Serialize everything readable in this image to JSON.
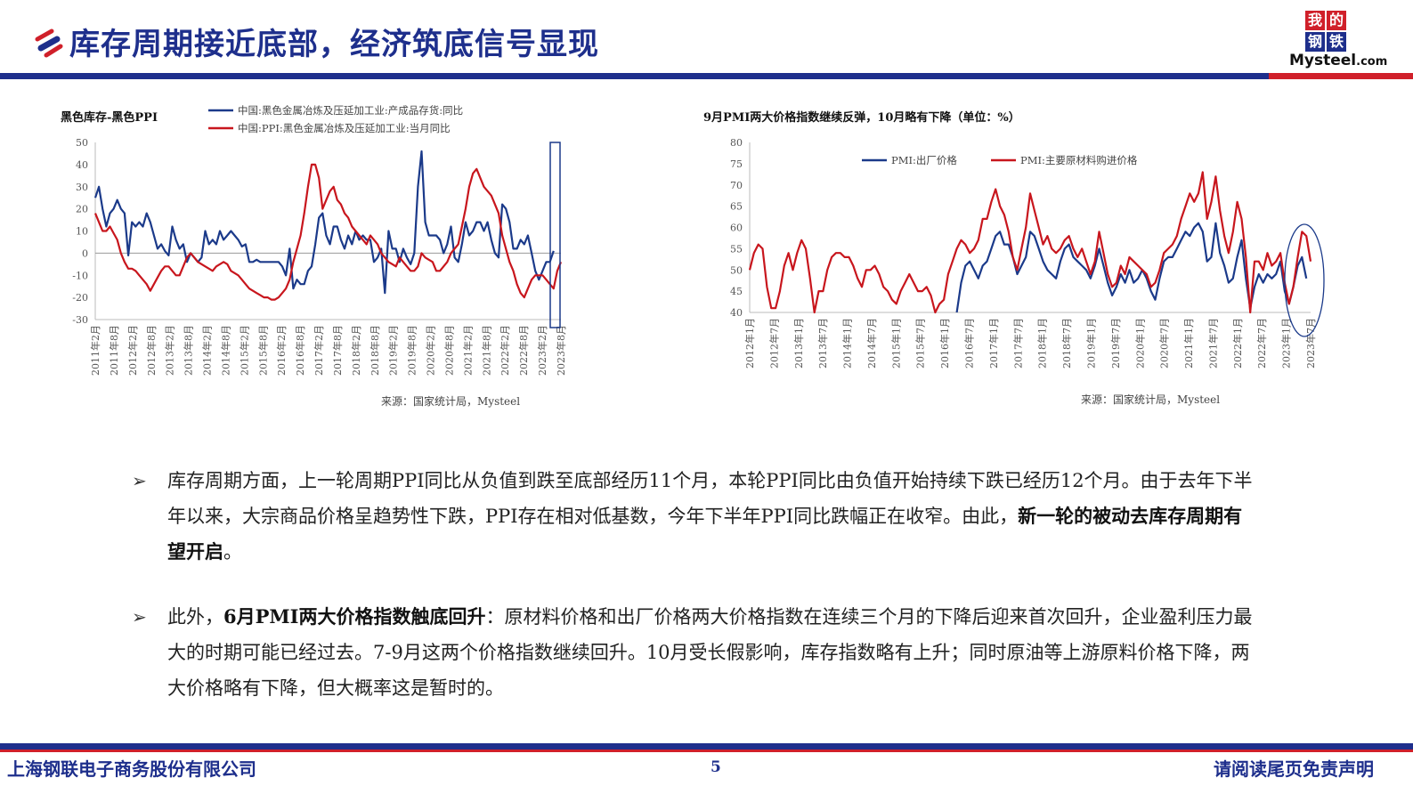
{
  "header": {
    "title": "库存周期接近底部，经济筑底信号显现",
    "logo_chars": [
      "我",
      "的",
      "钢",
      "铁"
    ],
    "logo_brand": "Mysteel",
    "logo_domain": ".com"
  },
  "colors": {
    "brand_blue": "#1e2f8c",
    "brand_red": "#d0202a",
    "series_blue": "#1b3a8a",
    "series_red": "#c8161d"
  },
  "charts": [
    {
      "title": "黑色库存-黑色PPI",
      "source": "来源：国家统计局，Mysteel",
      "chart_data": {
        "type": "line",
        "x_tick_labels": [
          "2011年2月",
          "2011年8月",
          "2012年2月",
          "2012年8月",
          "2013年2月",
          "2013年8月",
          "2014年2月",
          "2014年8月",
          "2015年2月",
          "2015年8月",
          "2016年2月",
          "2016年8月",
          "2017年2月",
          "2017年8月",
          "2018年2月",
          "2018年8月",
          "2019年2月",
          "2019年8月",
          "2020年2月",
          "2020年8月",
          "2021年2月",
          "2021年8月",
          "2022年2月",
          "2022年8月",
          "2023年2月",
          "2023年8月"
        ],
        "ylim": [
          -30,
          50
        ],
        "y_ticks": [
          -30,
          -20,
          -10,
          0,
          10,
          20,
          30,
          40,
          50
        ],
        "series": [
          {
            "name": "中国:黑色金属冶炼及压延加工业:产成品存货:同比",
            "color": "#1b3a8a",
            "values": [
              25,
              30,
              20,
              12,
              18,
              20,
              24,
              20,
              18,
              -1,
              14,
              12,
              14,
              12,
              18,
              14,
              8,
              2,
              4,
              1,
              -1,
              12,
              6,
              2,
              4,
              -4,
              0,
              -2,
              -4,
              -2,
              10,
              4,
              6,
              4,
              10,
              6,
              8,
              10,
              8,
              6,
              3,
              4,
              -4,
              -4,
              -3,
              -4,
              -4,
              -4,
              -4,
              -4,
              -4,
              -6,
              -10,
              2,
              -16,
              -12,
              -14,
              -14,
              -8,
              -6,
              4,
              16,
              18,
              8,
              4,
              12,
              12,
              6,
              2,
              8,
              4,
              10,
              6,
              8,
              6,
              6,
              -4,
              -2,
              2,
              -18,
              10,
              2,
              2,
              -4,
              2,
              -2,
              -5,
              0,
              30,
              46,
              14,
              8,
              8,
              8,
              6,
              0,
              4,
              12,
              -2,
              -4,
              4,
              14,
              8,
              10,
              14,
              14,
              10,
              14,
              6,
              0,
              -2,
              22,
              20,
              14,
              2,
              2,
              6,
              4,
              8,
              0,
              -8,
              -12,
              -8,
              -4,
              -4,
              1
            ]
          },
          {
            "name": "中国:PPI:黑色金属冶炼及压延加工业:当月同比",
            "color": "#c8161d",
            "values": [
              18,
              14,
              10,
              10,
              12,
              9,
              6,
              0,
              -4,
              -7,
              -7,
              -8,
              -10,
              -12,
              -14,
              -17,
              -14,
              -11,
              -8,
              -6,
              -6,
              -8,
              -10,
              -10,
              -6,
              -2,
              0,
              -2,
              -4,
              -5,
              -6,
              -7,
              -8,
              -6,
              -5,
              -4,
              -5,
              -8,
              -9,
              -10,
              -12,
              -14,
              -16,
              -17,
              -18,
              -19,
              -20,
              -20,
              -21,
              -21,
              -20,
              -18,
              -16,
              -12,
              -4,
              2,
              8,
              18,
              30,
              40,
              40,
              34,
              20,
              24,
              28,
              30,
              24,
              22,
              18,
              16,
              12,
              10,
              8,
              6,
              4,
              8,
              6,
              4,
              0,
              -2,
              -4,
              -5,
              -6,
              -2,
              -4,
              -6,
              -8,
              -8,
              -6,
              0,
              -2,
              -3,
              -4,
              -8,
              -8,
              -6,
              -4,
              0,
              2,
              4,
              12,
              20,
              30,
              36,
              38,
              34,
              30,
              28,
              26,
              22,
              18,
              8,
              2,
              -4,
              -8,
              -14,
              -18,
              -20,
              -16,
              -12,
              -10,
              -10,
              -10,
              -12,
              -14,
              -16,
              -8,
              -4
            ]
          }
        ]
      }
    },
    {
      "title": "9月PMI两大价格指数继续反弹，10月略有下降（单位：%）",
      "source": "来源：国家统计局，Mysteel",
      "chart_data": {
        "type": "line",
        "x_tick_labels": [
          "2012年1月",
          "2012年7月",
          "2013年1月",
          "2013年7月",
          "2014年1月",
          "2014年7月",
          "2015年1月",
          "2015年7月",
          "2016年1月",
          "2016年7月",
          "2017年1月",
          "2017年7月",
          "2018年1月",
          "2018年7月",
          "2019年1月",
          "2019年7月",
          "2020年1月",
          "2020年7月",
          "2021年1月",
          "2021年7月",
          "2022年1月",
          "2022年7月",
          "2023年1月",
          "2023年7月"
        ],
        "ylim": [
          40,
          80
        ],
        "y_ticks": [
          40,
          45,
          50,
          55,
          60,
          65,
          70,
          75,
          80
        ],
        "series": [
          {
            "name": "PMI:出厂价格",
            "color": "#1b3a8a",
            "values": [
              null,
              null,
              null,
              null,
              null,
              null,
              null,
              null,
              null,
              null,
              null,
              null,
              null,
              null,
              null,
              null,
              null,
              null,
              null,
              null,
              null,
              null,
              null,
              null,
              null,
              null,
              null,
              null,
              null,
              null,
              null,
              null,
              null,
              null,
              null,
              null,
              null,
              null,
              null,
              null,
              null,
              null,
              null,
              null,
              null,
              null,
              null,
              null,
              40,
              47,
              51,
              52,
              50,
              48,
              51,
              52,
              55,
              58,
              59,
              56,
              56,
              53,
              49,
              51,
              53,
              59,
              58,
              55,
              52,
              50,
              49,
              48,
              52,
              55,
              56,
              53,
              52,
              51,
              50,
              48,
              51,
              55,
              51,
              47,
              44,
              46,
              49,
              47,
              50,
              47,
              48,
              50,
              48,
              45,
              43,
              48,
              52,
              53,
              53,
              55,
              57,
              59,
              58,
              60,
              61,
              59,
              52,
              53,
              61,
              54,
              51,
              47,
              48,
              53,
              57,
              48,
              41,
              46,
              49,
              47,
              49,
              48,
              49,
              52,
              45,
              42,
              46,
              51,
              53,
              48
            ]
          },
          {
            "name": "PMI:主要原材料购进价格",
            "color": "#c8161d",
            "values": [
              50,
              54,
              56,
              55,
              46,
              41,
              41,
              45,
              51,
              54,
              50,
              54,
              57,
              55,
              48,
              40,
              45,
              45,
              50,
              53,
              54,
              54,
              53,
              53,
              51,
              48,
              46,
              50,
              50,
              51,
              49,
              46,
              45,
              43,
              42,
              45,
              47,
              49,
              47,
              45,
              45,
              46,
              44,
              40,
              42,
              43,
              49,
              52,
              55,
              57,
              56,
              54,
              55,
              57,
              62,
              62,
              66,
              69,
              65,
              63,
              59,
              53,
              50,
              55,
              60,
              68,
              64,
              60,
              56,
              58,
              55,
              54,
              55,
              57,
              58,
              55,
              53,
              55,
              52,
              49,
              52,
              59,
              54,
              49,
              46,
              47,
              51,
              49,
              53,
              52,
              51,
              50,
              49,
              46,
              47,
              50,
              54,
              55,
              56,
              58,
              62,
              65,
              68,
              66,
              68,
              73,
              62,
              66,
              72,
              64,
              58,
              54,
              59,
              66,
              62,
              53,
              40,
              52,
              52,
              50,
              54,
              51,
              52,
              54,
              47,
              42,
              46,
              53,
              59,
              58,
              52
            ]
          }
        ]
      }
    }
  ],
  "bullets": [
    {
      "segments": [
        {
          "text": "库存周期方面，上一轮周期PPI同比从负值到跌至底部经历11个月，本轮PPI同比由负值开始持续下跌已经历12个月。由于去年下半年以来，大宗商品价格呈趋势性下跌，PPI存在相对低基数，今年下半年PPI同比跌幅正在收窄。由此，",
          "bold": false
        },
        {
          "text": "新一轮的被动去库存周期有望开启",
          "bold": true
        },
        {
          "text": "。",
          "bold": false
        }
      ]
    },
    {
      "segments": [
        {
          "text": "此外，",
          "bold": false
        },
        {
          "text": "6月PMI两大价格指数触底回升",
          "bold": true
        },
        {
          "text": "：原材料价格和出厂价格两大价格指数在连续三个月的下降后迎来首次回升，企业盈利压力最大的时期可能已经过去。7-9月这两个价格指数继续回升。10月受长假影响，库存指数略有上升；同时原油等上游原料价格下降，两大价格略有下降，但大概率这是暂时的。",
          "bold": false
        }
      ]
    }
  ],
  "footer": {
    "company": "上海钢联电子商务股份有限公司",
    "page_number": "5",
    "disclaimer": "请阅读尾页免责声明"
  }
}
